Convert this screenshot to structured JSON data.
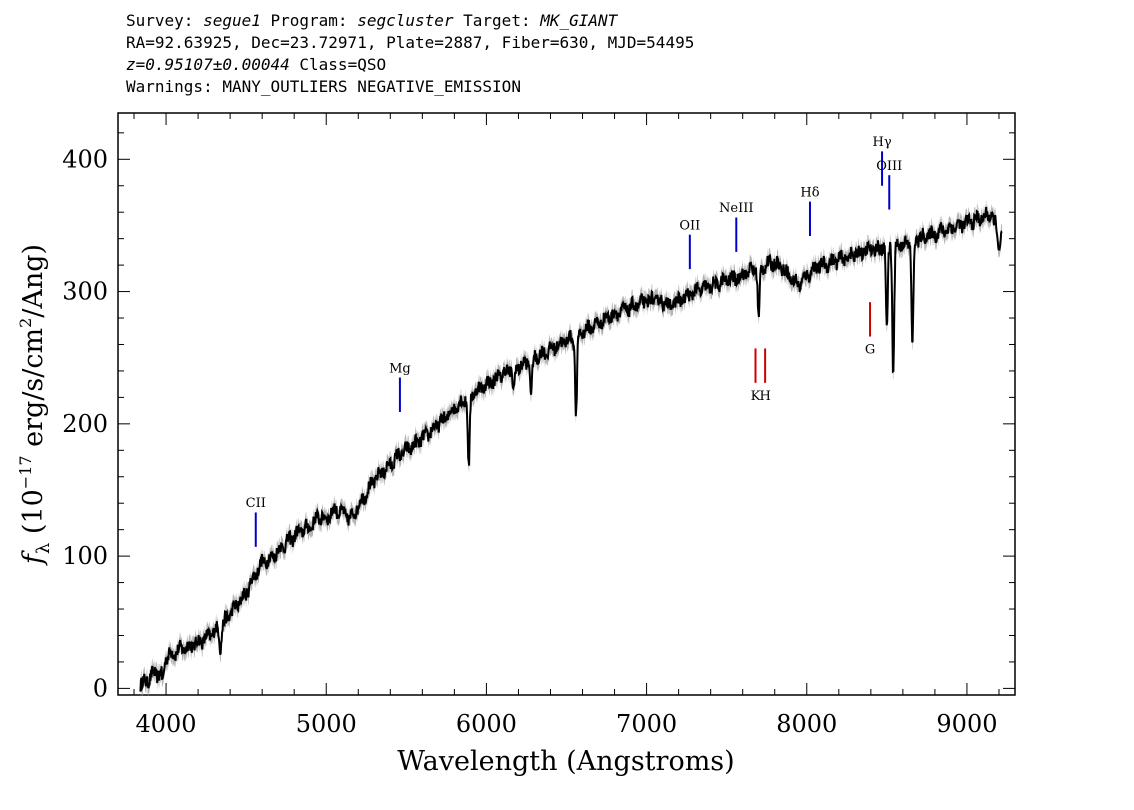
{
  "header": {
    "line1": {
      "survey_label": "Survey: ",
      "survey": "segue1",
      "program_label": " Program: ",
      "program": "segcluster",
      "target_label": " Target: ",
      "target": "MK_GIANT"
    },
    "line2": "RA=92.63925, Dec=23.72971, Plate=2887, Fiber=630, MJD=54495",
    "line3": {
      "z": "z=0.95107±0.00044",
      "class": " Class=QSO"
    },
    "line4": "Warnings: MANY_OUTLIERS NEGATIVE_EMISSION"
  },
  "chart_data": {
    "type": "line",
    "xlabel": "Wavelength (Angstroms)",
    "ylabel": "fλ (10⁻¹⁷ erg/s/cm²/Ang)",
    "ylabel_parts": {
      "f": "f",
      "lambda": "λ",
      "rest1": " (10",
      "exp1": "−17",
      "rest2": " erg/s/cm",
      "exp2": "2",
      "rest3": "/Ang)"
    },
    "xlim": [
      3700,
      9300
    ],
    "ylim": [
      -5,
      435
    ],
    "x_ticks": [
      4000,
      5000,
      6000,
      7000,
      8000,
      9000
    ],
    "x_tick_labels": [
      "4000",
      "5000",
      "6000",
      "7000",
      "8000",
      "9000"
    ],
    "y_ticks": [
      0,
      100,
      200,
      300,
      400
    ],
    "y_tick_labels": [
      "0",
      "100",
      "200",
      "300",
      "400"
    ],
    "grid": false,
    "colors": {
      "spectrum": "#000000",
      "error_band": "#b4b4b4",
      "emission": "#0000cc",
      "absorption": "#cc0000"
    },
    "series": [
      {
        "points": [
          [
            3840,
            3
          ],
          [
            3870,
            5
          ],
          [
            3900,
            8
          ],
          [
            3930,
            12
          ],
          [
            3960,
            10
          ],
          [
            4000,
            24
          ],
          [
            4050,
            27
          ],
          [
            4100,
            30
          ],
          [
            4150,
            32
          ],
          [
            4200,
            35
          ],
          [
            4250,
            38
          ],
          [
            4300,
            43
          ],
          [
            4350,
            47
          ],
          [
            4400,
            57
          ],
          [
            4450,
            64
          ],
          [
            4500,
            72
          ],
          [
            4550,
            85
          ],
          [
            4600,
            95
          ],
          [
            4650,
            98
          ],
          [
            4700,
            104
          ],
          [
            4750,
            110
          ],
          [
            4800,
            115
          ],
          [
            4850,
            120
          ],
          [
            4900,
            122
          ],
          [
            4950,
            130
          ],
          [
            5000,
            128
          ],
          [
            5050,
            135
          ],
          [
            5100,
            133
          ],
          [
            5150,
            128
          ],
          [
            5200,
            138
          ],
          [
            5250,
            148
          ],
          [
            5300,
            157
          ],
          [
            5350,
            164
          ],
          [
            5400,
            169
          ],
          [
            5450,
            176
          ],
          [
            5500,
            180
          ],
          [
            5550,
            184
          ],
          [
            5600,
            189
          ],
          [
            5650,
            194
          ],
          [
            5700,
            200
          ],
          [
            5750,
            205
          ],
          [
            5800,
            212
          ],
          [
            5850,
            217
          ],
          [
            5900,
            222
          ],
          [
            5950,
            226
          ],
          [
            6000,
            230
          ],
          [
            6050,
            233
          ],
          [
            6100,
            238
          ],
          [
            6150,
            241
          ],
          [
            6200,
            243
          ],
          [
            6250,
            246
          ],
          [
            6300,
            250
          ],
          [
            6350,
            253
          ],
          [
            6400,
            256
          ],
          [
            6450,
            260
          ],
          [
            6500,
            263
          ],
          [
            6550,
            266
          ],
          [
            6600,
            270
          ],
          [
            6650,
            273
          ],
          [
            6700,
            276
          ],
          [
            6750,
            280
          ],
          [
            6800,
            283
          ],
          [
            6850,
            285
          ],
          [
            6900,
            288
          ],
          [
            6950,
            290
          ],
          [
            7000,
            293
          ],
          [
            7050,
            294
          ],
          [
            7100,
            292
          ],
          [
            7150,
            290
          ],
          [
            7200,
            293
          ],
          [
            7250,
            296
          ],
          [
            7300,
            300
          ],
          [
            7350,
            302
          ],
          [
            7400,
            304
          ],
          [
            7450,
            306
          ],
          [
            7500,
            309
          ],
          [
            7550,
            310
          ],
          [
            7600,
            313
          ],
          [
            7650,
            316
          ],
          [
            7700,
            318
          ],
          [
            7750,
            320
          ],
          [
            7800,
            322
          ],
          [
            7850,
            318
          ],
          [
            7900,
            310
          ],
          [
            7950,
            305
          ],
          [
            8000,
            312
          ],
          [
            8050,
            318
          ],
          [
            8100,
            320
          ],
          [
            8150,
            322
          ],
          [
            8200,
            324
          ],
          [
            8250,
            326
          ],
          [
            8300,
            328
          ],
          [
            8350,
            330
          ],
          [
            8400,
            332
          ],
          [
            8450,
            332
          ],
          [
            8500,
            335
          ],
          [
            8550,
            337
          ],
          [
            8600,
            335
          ],
          [
            8650,
            338
          ],
          [
            8700,
            340
          ],
          [
            8750,
            342
          ],
          [
            8800,
            344
          ],
          [
            8850,
            346
          ],
          [
            8900,
            348
          ],
          [
            8950,
            350
          ],
          [
            9000,
            352
          ],
          [
            9050,
            354
          ],
          [
            9100,
            356
          ],
          [
            9150,
            358
          ],
          [
            9200,
            345
          ],
          [
            9220,
            343
          ]
        ],
        "noise_amplitude": 5,
        "absorption_dips": [
          [
            3980,
            12
          ],
          [
            4340,
            15
          ],
          [
            5890,
            55
          ],
          [
            6170,
            18
          ],
          [
            6280,
            25
          ],
          [
            6560,
            60
          ],
          [
            7700,
            40
          ],
          [
            8500,
            60
          ],
          [
            8540,
            100
          ],
          [
            8660,
            80
          ],
          [
            9200,
            15
          ]
        ]
      }
    ],
    "line_markers": [
      {
        "label": "CII",
        "wavelength": 4560,
        "flux_top": 133,
        "flux_bottom": 107,
        "kind": "emission",
        "text_flux": 137
      },
      {
        "label": "Mg",
        "wavelength": 5460,
        "flux_top": 235,
        "flux_bottom": 209,
        "kind": "emission",
        "text_flux": 239
      },
      {
        "label": "OII",
        "wavelength": 7270,
        "flux_top": 343,
        "flux_bottom": 317,
        "kind": "emission",
        "text_flux": 347
      },
      {
        "label": "NeIII",
        "wavelength": 7560,
        "flux_top": 356,
        "flux_bottom": 330,
        "kind": "emission",
        "text_flux": 360
      },
      {
        "label": "Hδ",
        "wavelength": 8020,
        "flux_top": 368,
        "flux_bottom": 342,
        "kind": "emission",
        "text_flux": 372
      },
      {
        "label": "Hγ",
        "wavelength": 8470,
        "flux_top": 406,
        "flux_bottom": 380,
        "kind": "emission",
        "text_flux": 410
      },
      {
        "label": "OIII",
        "wavelength": 8515,
        "flux_top": 388,
        "flux_bottom": 362,
        "kind": "emission",
        "text_flux": 392
      },
      {
        "label": "K",
        "wavelength": 7680,
        "flux_top": 257,
        "flux_bottom": 231,
        "kind": "absorption",
        "text_flux": 218
      },
      {
        "label": "H",
        "wavelength": 7740,
        "flux_top": 257,
        "flux_bottom": 231,
        "kind": "absorption",
        "text_flux": 218
      },
      {
        "label": "G",
        "wavelength": 8395,
        "flux_top": 292,
        "flux_bottom": 266,
        "kind": "absorption",
        "text_flux": 253
      }
    ]
  }
}
